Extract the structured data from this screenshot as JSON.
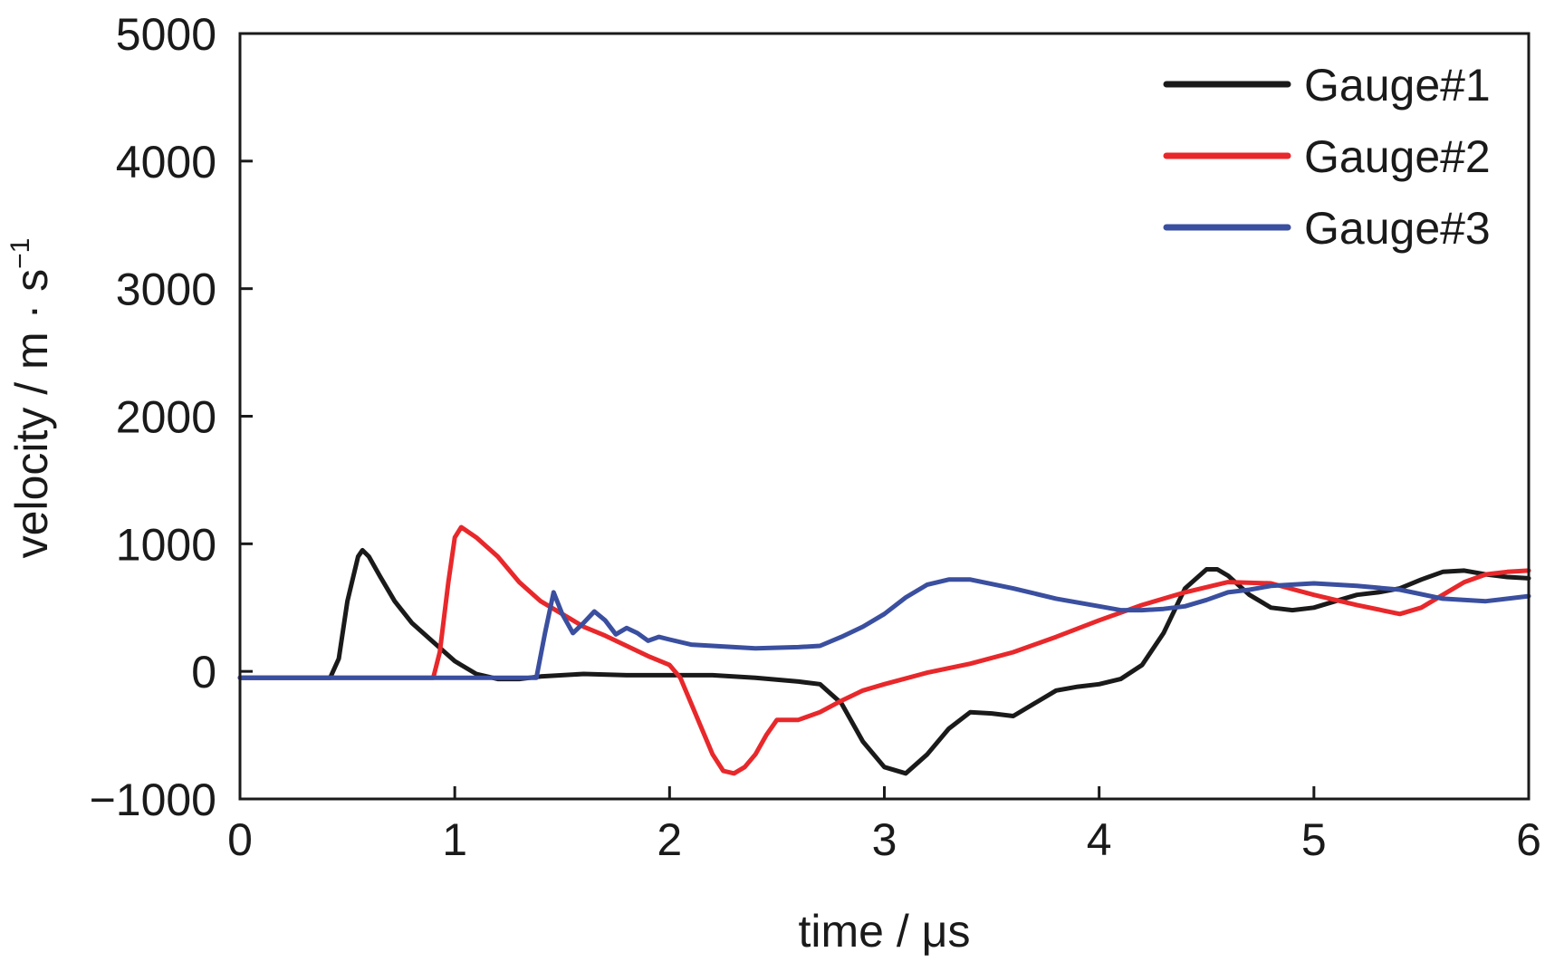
{
  "chart_data": {
    "type": "line",
    "title": "",
    "xlabel": "time / μs",
    "ylabel": "velocity / m · s",
    "ylabel_superscript": "−1",
    "xlim": [
      0,
      6
    ],
    "ylim": [
      -1000,
      5000
    ],
    "x_ticks": [
      0,
      1,
      2,
      3,
      4,
      5,
      6
    ],
    "x_tick_labels": [
      "0",
      "1",
      "2",
      "3",
      "4",
      "5",
      "6"
    ],
    "y_ticks": [
      -1000,
      0,
      1000,
      2000,
      3000,
      4000,
      5000
    ],
    "y_tick_labels": [
      "−1000",
      "0",
      "1000",
      "2000",
      "3000",
      "4000",
      "5000"
    ],
    "grid": false,
    "legend_position": "top-right",
    "series": [
      {
        "name": "Gauge#1",
        "color": "#1a1a1a",
        "points": [
          [
            0,
            -50
          ],
          [
            0.42,
            -50
          ],
          [
            0.46,
            100
          ],
          [
            0.5,
            550
          ],
          [
            0.55,
            900
          ],
          [
            0.57,
            950
          ],
          [
            0.6,
            900
          ],
          [
            0.65,
            750
          ],
          [
            0.72,
            550
          ],
          [
            0.8,
            380
          ],
          [
            0.9,
            230
          ],
          [
            1.0,
            80
          ],
          [
            1.1,
            -20
          ],
          [
            1.2,
            -60
          ],
          [
            1.3,
            -60
          ],
          [
            1.4,
            -40
          ],
          [
            1.6,
            -20
          ],
          [
            1.8,
            -30
          ],
          [
            2.0,
            -30
          ],
          [
            2.2,
            -30
          ],
          [
            2.4,
            -50
          ],
          [
            2.6,
            -80
          ],
          [
            2.7,
            -100
          ],
          [
            2.8,
            -250
          ],
          [
            2.9,
            -550
          ],
          [
            3.0,
            -750
          ],
          [
            3.1,
            -800
          ],
          [
            3.2,
            -650
          ],
          [
            3.3,
            -450
          ],
          [
            3.4,
            -320
          ],
          [
            3.5,
            -330
          ],
          [
            3.6,
            -350
          ],
          [
            3.7,
            -250
          ],
          [
            3.8,
            -150
          ],
          [
            3.9,
            -120
          ],
          [
            4.0,
            -100
          ],
          [
            4.1,
            -60
          ],
          [
            4.2,
            50
          ],
          [
            4.3,
            300
          ],
          [
            4.4,
            650
          ],
          [
            4.5,
            800
          ],
          [
            4.55,
            800
          ],
          [
            4.6,
            750
          ],
          [
            4.7,
            600
          ],
          [
            4.8,
            500
          ],
          [
            4.9,
            480
          ],
          [
            5.0,
            500
          ],
          [
            5.1,
            550
          ],
          [
            5.2,
            600
          ],
          [
            5.3,
            620
          ],
          [
            5.4,
            650
          ],
          [
            5.5,
            720
          ],
          [
            5.6,
            780
          ],
          [
            5.7,
            790
          ],
          [
            5.8,
            760
          ],
          [
            5.9,
            740
          ],
          [
            6.0,
            730
          ]
        ]
      },
      {
        "name": "Gauge#2",
        "color": "#e8282b",
        "points": [
          [
            0,
            -50
          ],
          [
            0.9,
            -50
          ],
          [
            0.93,
            150
          ],
          [
            0.97,
            700
          ],
          [
            1.0,
            1050
          ],
          [
            1.03,
            1130
          ],
          [
            1.1,
            1050
          ],
          [
            1.2,
            900
          ],
          [
            1.3,
            700
          ],
          [
            1.4,
            550
          ],
          [
            1.5,
            450
          ],
          [
            1.6,
            350
          ],
          [
            1.7,
            280
          ],
          [
            1.8,
            200
          ],
          [
            1.9,
            120
          ],
          [
            2.0,
            50
          ],
          [
            2.05,
            -50
          ],
          [
            2.1,
            -250
          ],
          [
            2.15,
            -450
          ],
          [
            2.2,
            -650
          ],
          [
            2.25,
            -780
          ],
          [
            2.3,
            -800
          ],
          [
            2.35,
            -750
          ],
          [
            2.4,
            -650
          ],
          [
            2.45,
            -500
          ],
          [
            2.5,
            -380
          ],
          [
            2.6,
            -380
          ],
          [
            2.7,
            -320
          ],
          [
            2.8,
            -230
          ],
          [
            2.9,
            -150
          ],
          [
            3.0,
            -100
          ],
          [
            3.2,
            -10
          ],
          [
            3.4,
            60
          ],
          [
            3.6,
            150
          ],
          [
            3.8,
            270
          ],
          [
            4.0,
            400
          ],
          [
            4.2,
            520
          ],
          [
            4.4,
            620
          ],
          [
            4.6,
            700
          ],
          [
            4.8,
            690
          ],
          [
            5.0,
            600
          ],
          [
            5.2,
            520
          ],
          [
            5.4,
            450
          ],
          [
            5.5,
            500
          ],
          [
            5.6,
            600
          ],
          [
            5.7,
            700
          ],
          [
            5.8,
            760
          ],
          [
            5.9,
            780
          ],
          [
            6.0,
            790
          ]
        ]
      },
      {
        "name": "Gauge#3",
        "color": "#3a4f9f",
        "points": [
          [
            0,
            -50
          ],
          [
            1.38,
            -50
          ],
          [
            1.42,
            300
          ],
          [
            1.46,
            620
          ],
          [
            1.5,
            450
          ],
          [
            1.55,
            300
          ],
          [
            1.6,
            380
          ],
          [
            1.65,
            470
          ],
          [
            1.7,
            400
          ],
          [
            1.75,
            290
          ],
          [
            1.8,
            340
          ],
          [
            1.85,
            300
          ],
          [
            1.9,
            240
          ],
          [
            1.95,
            270
          ],
          [
            2.0,
            250
          ],
          [
            2.1,
            210
          ],
          [
            2.2,
            200
          ],
          [
            2.4,
            180
          ],
          [
            2.6,
            190
          ],
          [
            2.7,
            200
          ],
          [
            2.8,
            270
          ],
          [
            2.9,
            350
          ],
          [
            3.0,
            450
          ],
          [
            3.1,
            580
          ],
          [
            3.2,
            680
          ],
          [
            3.3,
            720
          ],
          [
            3.4,
            720
          ],
          [
            3.6,
            650
          ],
          [
            3.8,
            570
          ],
          [
            4.0,
            510
          ],
          [
            4.1,
            480
          ],
          [
            4.2,
            480
          ],
          [
            4.3,
            490
          ],
          [
            4.4,
            510
          ],
          [
            4.5,
            560
          ],
          [
            4.6,
            620
          ],
          [
            4.7,
            640
          ],
          [
            4.8,
            670
          ],
          [
            5.0,
            690
          ],
          [
            5.2,
            670
          ],
          [
            5.4,
            640
          ],
          [
            5.6,
            570
          ],
          [
            5.8,
            550
          ],
          [
            6.0,
            590
          ]
        ]
      }
    ]
  }
}
